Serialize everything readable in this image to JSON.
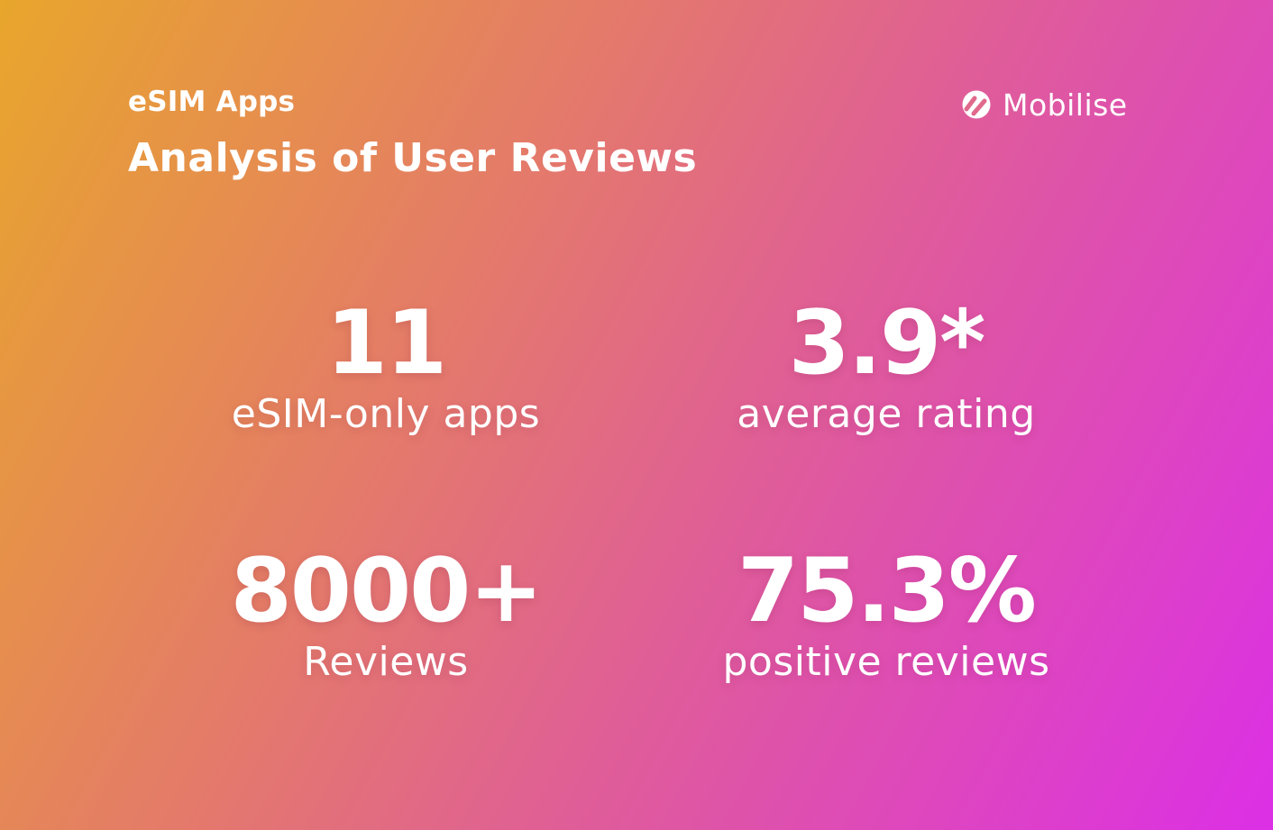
{
  "header": {
    "subtitle": "eSIM Apps",
    "title": "Analysis of User Reviews"
  },
  "brand": {
    "name": "Mobilise",
    "icon": "mobilise-logo-icon"
  },
  "stats": [
    {
      "value": "11",
      "label": "eSIM-only apps"
    },
    {
      "value": "3.9*",
      "label": "average rating"
    },
    {
      "value": "8000+",
      "label": "Reviews"
    },
    {
      "value": "75.3%",
      "label": "positive reviews"
    }
  ],
  "colors": {
    "gradient_start": "#e8a62c",
    "gradient_mid": "#df5c9a",
    "gradient_end": "#dc2fe6",
    "text": "#ffffff"
  }
}
